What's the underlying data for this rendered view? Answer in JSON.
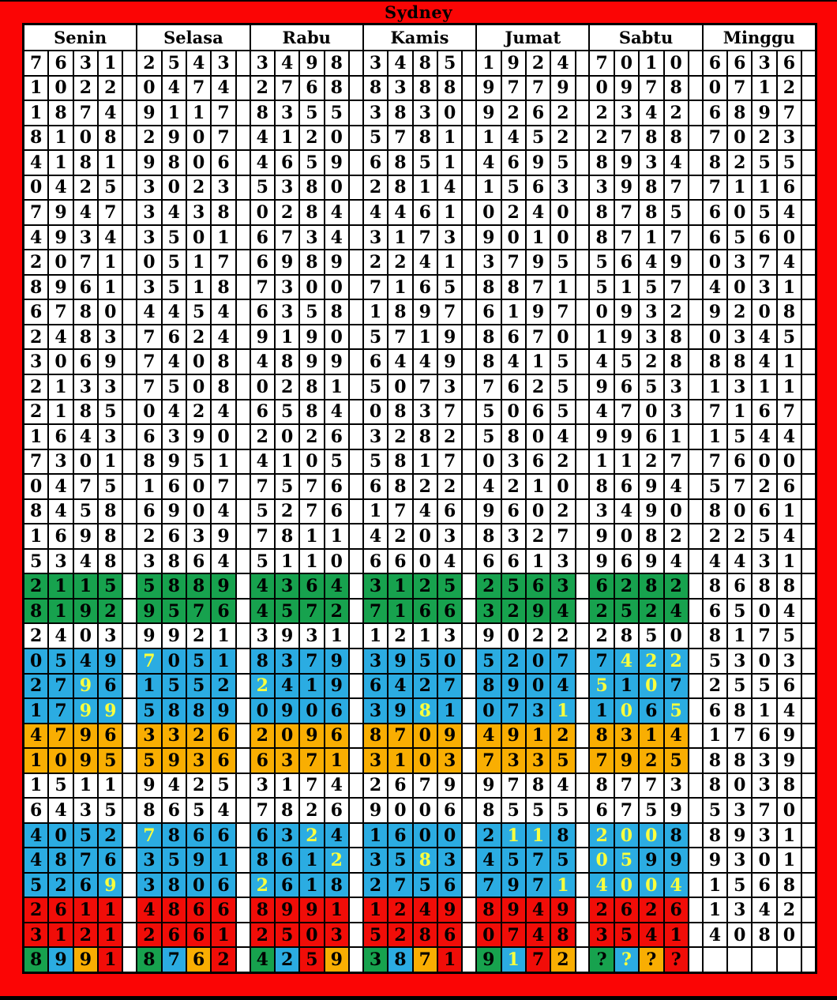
{
  "title": "Sydney",
  "colors": {
    "frame_red": "#FB0505",
    "cell_red": "#F10D08",
    "green": "#17A24E",
    "blue": "#2BACE2",
    "orange": "#F9AE02",
    "yellow_digit": "#FAFF3D",
    "cell_white": "#FFFFFF",
    "grid_line": "#000000",
    "text": "#000000"
  },
  "grid": {
    "days": [
      "Senin",
      "Selasa",
      "Rabu",
      "Kamis",
      "Jumat",
      "Sabtu",
      "Minggu"
    ],
    "rows": [
      {
        "cells": [
          {
            "v": "7631"
          },
          {
            "v": "2543"
          },
          {
            "v": "3498"
          },
          {
            "v": "3485"
          },
          {
            "v": "1924"
          },
          {
            "v": "7010"
          },
          {
            "v": "6636"
          }
        ]
      },
      {
        "cells": [
          {
            "v": "1022"
          },
          {
            "v": "0474"
          },
          {
            "v": "2768"
          },
          {
            "v": "8388"
          },
          {
            "v": "9779"
          },
          {
            "v": "0978"
          },
          {
            "v": "0712"
          }
        ]
      },
      {
        "cells": [
          {
            "v": "1874"
          },
          {
            "v": "9117"
          },
          {
            "v": "8355"
          },
          {
            "v": "3830"
          },
          {
            "v": "9262"
          },
          {
            "v": "2342"
          },
          {
            "v": "6897"
          }
        ]
      },
      {
        "cells": [
          {
            "v": "8108"
          },
          {
            "v": "2907"
          },
          {
            "v": "4120"
          },
          {
            "v": "5781"
          },
          {
            "v": "1452"
          },
          {
            "v": "2788"
          },
          {
            "v": "7023"
          }
        ]
      },
      {
        "cells": [
          {
            "v": "4181"
          },
          {
            "v": "9806"
          },
          {
            "v": "4659"
          },
          {
            "v": "6851"
          },
          {
            "v": "4695"
          },
          {
            "v": "8934"
          },
          {
            "v": "8255"
          }
        ]
      },
      {
        "cells": [
          {
            "v": "0425"
          },
          {
            "v": "3023"
          },
          {
            "v": "5380"
          },
          {
            "v": "2814"
          },
          {
            "v": "1563"
          },
          {
            "v": "3987"
          },
          {
            "v": "7116"
          }
        ]
      },
      {
        "cells": [
          {
            "v": "7947"
          },
          {
            "v": "3438"
          },
          {
            "v": "0284"
          },
          {
            "v": "4461"
          },
          {
            "v": "0240"
          },
          {
            "v": "8785"
          },
          {
            "v": "6054"
          }
        ]
      },
      {
        "cells": [
          {
            "v": "4934"
          },
          {
            "v": "3501"
          },
          {
            "v": "6734"
          },
          {
            "v": "3173"
          },
          {
            "v": "9010"
          },
          {
            "v": "8717"
          },
          {
            "v": "6560"
          }
        ]
      },
      {
        "cells": [
          {
            "v": "2071"
          },
          {
            "v": "0517"
          },
          {
            "v": "6989"
          },
          {
            "v": "2241"
          },
          {
            "v": "3795"
          },
          {
            "v": "5649"
          },
          {
            "v": "0374"
          }
        ]
      },
      {
        "cells": [
          {
            "v": "8961"
          },
          {
            "v": "3518"
          },
          {
            "v": "7300"
          },
          {
            "v": "7165"
          },
          {
            "v": "8871"
          },
          {
            "v": "5157"
          },
          {
            "v": "4031"
          }
        ]
      },
      {
        "cells": [
          {
            "v": "6780"
          },
          {
            "v": "4454"
          },
          {
            "v": "6358"
          },
          {
            "v": "1897"
          },
          {
            "v": "6197"
          },
          {
            "v": "0932"
          },
          {
            "v": "9208"
          }
        ]
      },
      {
        "cells": [
          {
            "v": "2483"
          },
          {
            "v": "7624"
          },
          {
            "v": "9190"
          },
          {
            "v": "5719"
          },
          {
            "v": "8670"
          },
          {
            "v": "1938"
          },
          {
            "v": "0345"
          }
        ]
      },
      {
        "cells": [
          {
            "v": "3069"
          },
          {
            "v": "7408"
          },
          {
            "v": "4899"
          },
          {
            "v": "6449"
          },
          {
            "v": "8415"
          },
          {
            "v": "4528"
          },
          {
            "v": "8841"
          }
        ]
      },
      {
        "cells": [
          {
            "v": "2133"
          },
          {
            "v": "7508"
          },
          {
            "v": "0281"
          },
          {
            "v": "5073"
          },
          {
            "v": "7625"
          },
          {
            "v": "9653"
          },
          {
            "v": "1311"
          }
        ]
      },
      {
        "cells": [
          {
            "v": "2185"
          },
          {
            "v": "0424"
          },
          {
            "v": "6584"
          },
          {
            "v": "0837"
          },
          {
            "v": "5065"
          },
          {
            "v": "4703"
          },
          {
            "v": "7167"
          }
        ]
      },
      {
        "cells": [
          {
            "v": "1643"
          },
          {
            "v": "6390"
          },
          {
            "v": "2026"
          },
          {
            "v": "3282"
          },
          {
            "v": "5804"
          },
          {
            "v": "9961"
          },
          {
            "v": "1544"
          }
        ]
      },
      {
        "cells": [
          {
            "v": "7301"
          },
          {
            "v": "8951"
          },
          {
            "v": "4105"
          },
          {
            "v": "5817"
          },
          {
            "v": "0362"
          },
          {
            "v": "1127"
          },
          {
            "v": "7600"
          }
        ]
      },
      {
        "cells": [
          {
            "v": "0475"
          },
          {
            "v": "1607"
          },
          {
            "v": "7576"
          },
          {
            "v": "6822"
          },
          {
            "v": "4210"
          },
          {
            "v": "8694"
          },
          {
            "v": "5726"
          }
        ]
      },
      {
        "cells": [
          {
            "v": "8458"
          },
          {
            "v": "6904"
          },
          {
            "v": "5276"
          },
          {
            "v": "1746"
          },
          {
            "v": "9602"
          },
          {
            "v": "3490"
          },
          {
            "v": "8061"
          }
        ]
      },
      {
        "cells": [
          {
            "v": "1698"
          },
          {
            "v": "2639"
          },
          {
            "v": "7811"
          },
          {
            "v": "4203"
          },
          {
            "v": "8327"
          },
          {
            "v": "9082"
          },
          {
            "v": "2254"
          }
        ]
      },
      {
        "cells": [
          {
            "v": "5348"
          },
          {
            "v": "3864"
          },
          {
            "v": "5110"
          },
          {
            "v": "6604"
          },
          {
            "v": "6613"
          },
          {
            "v": "9694"
          },
          {
            "v": "4431"
          }
        ]
      },
      {
        "cells": [
          {
            "v": "2115",
            "bg": "g"
          },
          {
            "v": "5889",
            "bg": "g"
          },
          {
            "v": "4364",
            "bg": "g"
          },
          {
            "v": "3125",
            "bg": "g"
          },
          {
            "v": "2563",
            "bg": "g"
          },
          {
            "v": "6282",
            "bg": "g"
          },
          {
            "v": "8688"
          }
        ]
      },
      {
        "cells": [
          {
            "v": "8192",
            "bg": "g"
          },
          {
            "v": "9576",
            "bg": "g"
          },
          {
            "v": "4572",
            "bg": "g"
          },
          {
            "v": "7166",
            "bg": "g"
          },
          {
            "v": "3294",
            "bg": "g"
          },
          {
            "v": "2524",
            "bg": "g"
          },
          {
            "v": "6504"
          }
        ]
      },
      {
        "cells": [
          {
            "v": "2403"
          },
          {
            "v": "9921"
          },
          {
            "v": "3931"
          },
          {
            "v": "1213"
          },
          {
            "v": "9022"
          },
          {
            "v": "2850"
          },
          {
            "v": "8175"
          }
        ]
      },
      {
        "cells": [
          {
            "v": "0549",
            "bg": "b"
          },
          {
            "v": "7051",
            "bg": "b",
            "y": [
              0
            ]
          },
          {
            "v": "8379",
            "bg": "b"
          },
          {
            "v": "3950",
            "bg": "b"
          },
          {
            "v": "5207",
            "bg": "b"
          },
          {
            "v": "7422",
            "bg": "b",
            "y": [
              1,
              2,
              3
            ]
          },
          {
            "v": "5303"
          }
        ]
      },
      {
        "cells": [
          {
            "v": "2796",
            "bg": "b",
            "y": [
              2
            ]
          },
          {
            "v": "1552",
            "bg": "b"
          },
          {
            "v": "2419",
            "bg": "b",
            "y": [
              0
            ]
          },
          {
            "v": "6427",
            "bg": "b"
          },
          {
            "v": "8904",
            "bg": "b"
          },
          {
            "v": "5107",
            "bg": "b",
            "y": [
              0,
              2
            ]
          },
          {
            "v": "2556"
          }
        ]
      },
      {
        "cells": [
          {
            "v": "1799",
            "bg": "b",
            "y": [
              2,
              3
            ]
          },
          {
            "v": "5889",
            "bg": "b"
          },
          {
            "v": "0906",
            "bg": "b"
          },
          {
            "v": "3981",
            "bg": "b",
            "y": [
              2
            ]
          },
          {
            "v": "0731",
            "bg": "b",
            "y": [
              3
            ]
          },
          {
            "v": "1065",
            "bg": "b",
            "y": [
              1,
              3
            ]
          },
          {
            "v": "6814"
          }
        ]
      },
      {
        "cells": [
          {
            "v": "4796",
            "bg": "o"
          },
          {
            "v": "3326",
            "bg": "o"
          },
          {
            "v": "2096",
            "bg": "o"
          },
          {
            "v": "8709",
            "bg": "o"
          },
          {
            "v": "4912",
            "bg": "o"
          },
          {
            "v": "8314",
            "bg": "o"
          },
          {
            "v": "1769"
          }
        ]
      },
      {
        "cells": [
          {
            "v": "1095",
            "bg": "o"
          },
          {
            "v": "5936",
            "bg": "o"
          },
          {
            "v": "6371",
            "bg": "o"
          },
          {
            "v": "3103",
            "bg": "o"
          },
          {
            "v": "7335",
            "bg": "o"
          },
          {
            "v": "7925",
            "bg": "o"
          },
          {
            "v": "8839"
          }
        ]
      },
      {
        "cells": [
          {
            "v": "1511"
          },
          {
            "v": "9425"
          },
          {
            "v": "3174"
          },
          {
            "v": "2679"
          },
          {
            "v": "9784"
          },
          {
            "v": "8773"
          },
          {
            "v": "8038"
          }
        ]
      },
      {
        "cells": [
          {
            "v": "6435"
          },
          {
            "v": "8654"
          },
          {
            "v": "7826"
          },
          {
            "v": "9006"
          },
          {
            "v": "8555"
          },
          {
            "v": "6759"
          },
          {
            "v": "5370"
          }
        ]
      },
      {
        "cells": [
          {
            "v": "4052",
            "bg": "b"
          },
          {
            "v": "7866",
            "bg": "b",
            "y": [
              0
            ]
          },
          {
            "v": "6324",
            "bg": "b",
            "y": [
              2
            ]
          },
          {
            "v": "1600",
            "bg": "b"
          },
          {
            "v": "2118",
            "bg": "b",
            "y": [
              1,
              2
            ]
          },
          {
            "v": "2008",
            "bg": "b",
            "y": [
              0,
              1,
              2
            ]
          },
          {
            "v": "8931"
          }
        ]
      },
      {
        "cells": [
          {
            "v": "4876",
            "bg": "b"
          },
          {
            "v": "3591",
            "bg": "b"
          },
          {
            "v": "8612",
            "bg": "b",
            "y": [
              3
            ]
          },
          {
            "v": "3583",
            "bg": "b",
            "y": [
              2
            ]
          },
          {
            "v": "4575",
            "bg": "b"
          },
          {
            "v": "0599",
            "bg": "b",
            "y": [
              0,
              1
            ]
          },
          {
            "v": "9301"
          }
        ]
      },
      {
        "cells": [
          {
            "v": "5269",
            "bg": "b",
            "y": [
              3
            ]
          },
          {
            "v": "3806",
            "bg": "b"
          },
          {
            "v": "2618",
            "bg": "b",
            "y": [
              0
            ]
          },
          {
            "v": "2756",
            "bg": "b"
          },
          {
            "v": "7971",
            "bg": "b",
            "y": [
              3
            ]
          },
          {
            "v": "4004",
            "bg": "b",
            "y": [
              0,
              1,
              2,
              3
            ]
          },
          {
            "v": "1568"
          }
        ]
      },
      {
        "cells": [
          {
            "v": "2611",
            "bg": "r"
          },
          {
            "v": "4866",
            "bg": "r"
          },
          {
            "v": "8991",
            "bg": "r"
          },
          {
            "v": "1249",
            "bg": "r"
          },
          {
            "v": "8949",
            "bg": "r"
          },
          {
            "v": "2626",
            "bg": "r"
          },
          {
            "v": "1342"
          }
        ]
      },
      {
        "cells": [
          {
            "v": "3121",
            "bg": "r"
          },
          {
            "v": "2661",
            "bg": "r"
          },
          {
            "v": "2503",
            "bg": "r"
          },
          {
            "v": "5286",
            "bg": "r"
          },
          {
            "v": "0748",
            "bg": "r"
          },
          {
            "v": "3541",
            "bg": "r"
          },
          {
            "v": "4080"
          }
        ]
      },
      {
        "cells": [
          {
            "v": "8991",
            "bg": [
              "g",
              "b",
              "o",
              "r"
            ]
          },
          {
            "v": "8762",
            "bg": [
              "g",
              "b",
              "o",
              "r"
            ]
          },
          {
            "v": "4259",
            "bg": [
              "g",
              "b",
              "r",
              "o"
            ]
          },
          {
            "v": "3871",
            "bg": [
              "g",
              "b",
              "o",
              "r"
            ]
          },
          {
            "v": "9172",
            "bg": [
              "g",
              "b",
              "r",
              "o"
            ],
            "y": [
              1
            ]
          },
          {
            "v": "????",
            "bg": [
              "g",
              "b",
              "o",
              "r"
            ],
            "y": [
              1
            ]
          },
          {
            "v": ""
          }
        ]
      }
    ]
  }
}
